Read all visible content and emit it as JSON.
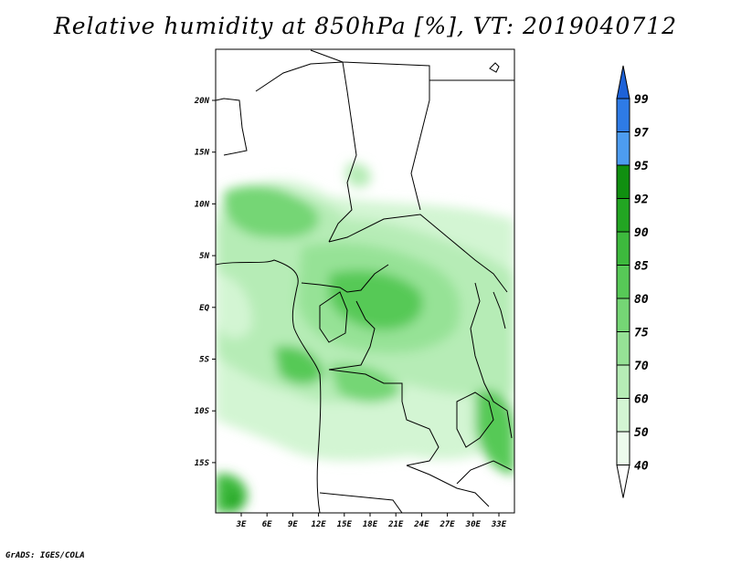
{
  "title": "Relative humidity at 850hPa [%], VT: 2019040712",
  "credit": "GrADS: IGES/COLA",
  "lat_labels": [
    "20N",
    "15N",
    "10N",
    "5N",
    "EQ",
    "5S",
    "10S",
    "15S"
  ],
  "lon_labels": [
    "3E",
    "6E",
    "9E",
    "12E",
    "15E",
    "18E",
    "21E",
    "24E",
    "27E",
    "30E",
    "33E"
  ],
  "colorbar": {
    "levels": [
      "99",
      "97",
      "95",
      "92",
      "90",
      "85",
      "80",
      "75",
      "70",
      "60",
      "50",
      "40"
    ],
    "colors": [
      "#1d62d8",
      "#2e7be6",
      "#4d9cf0",
      "#108f10",
      "#22a522",
      "#3db93d",
      "#57c957",
      "#75d675",
      "#96e296",
      "#b6ecb6",
      "#d3f5d3",
      "#edfbed"
    ]
  }
}
